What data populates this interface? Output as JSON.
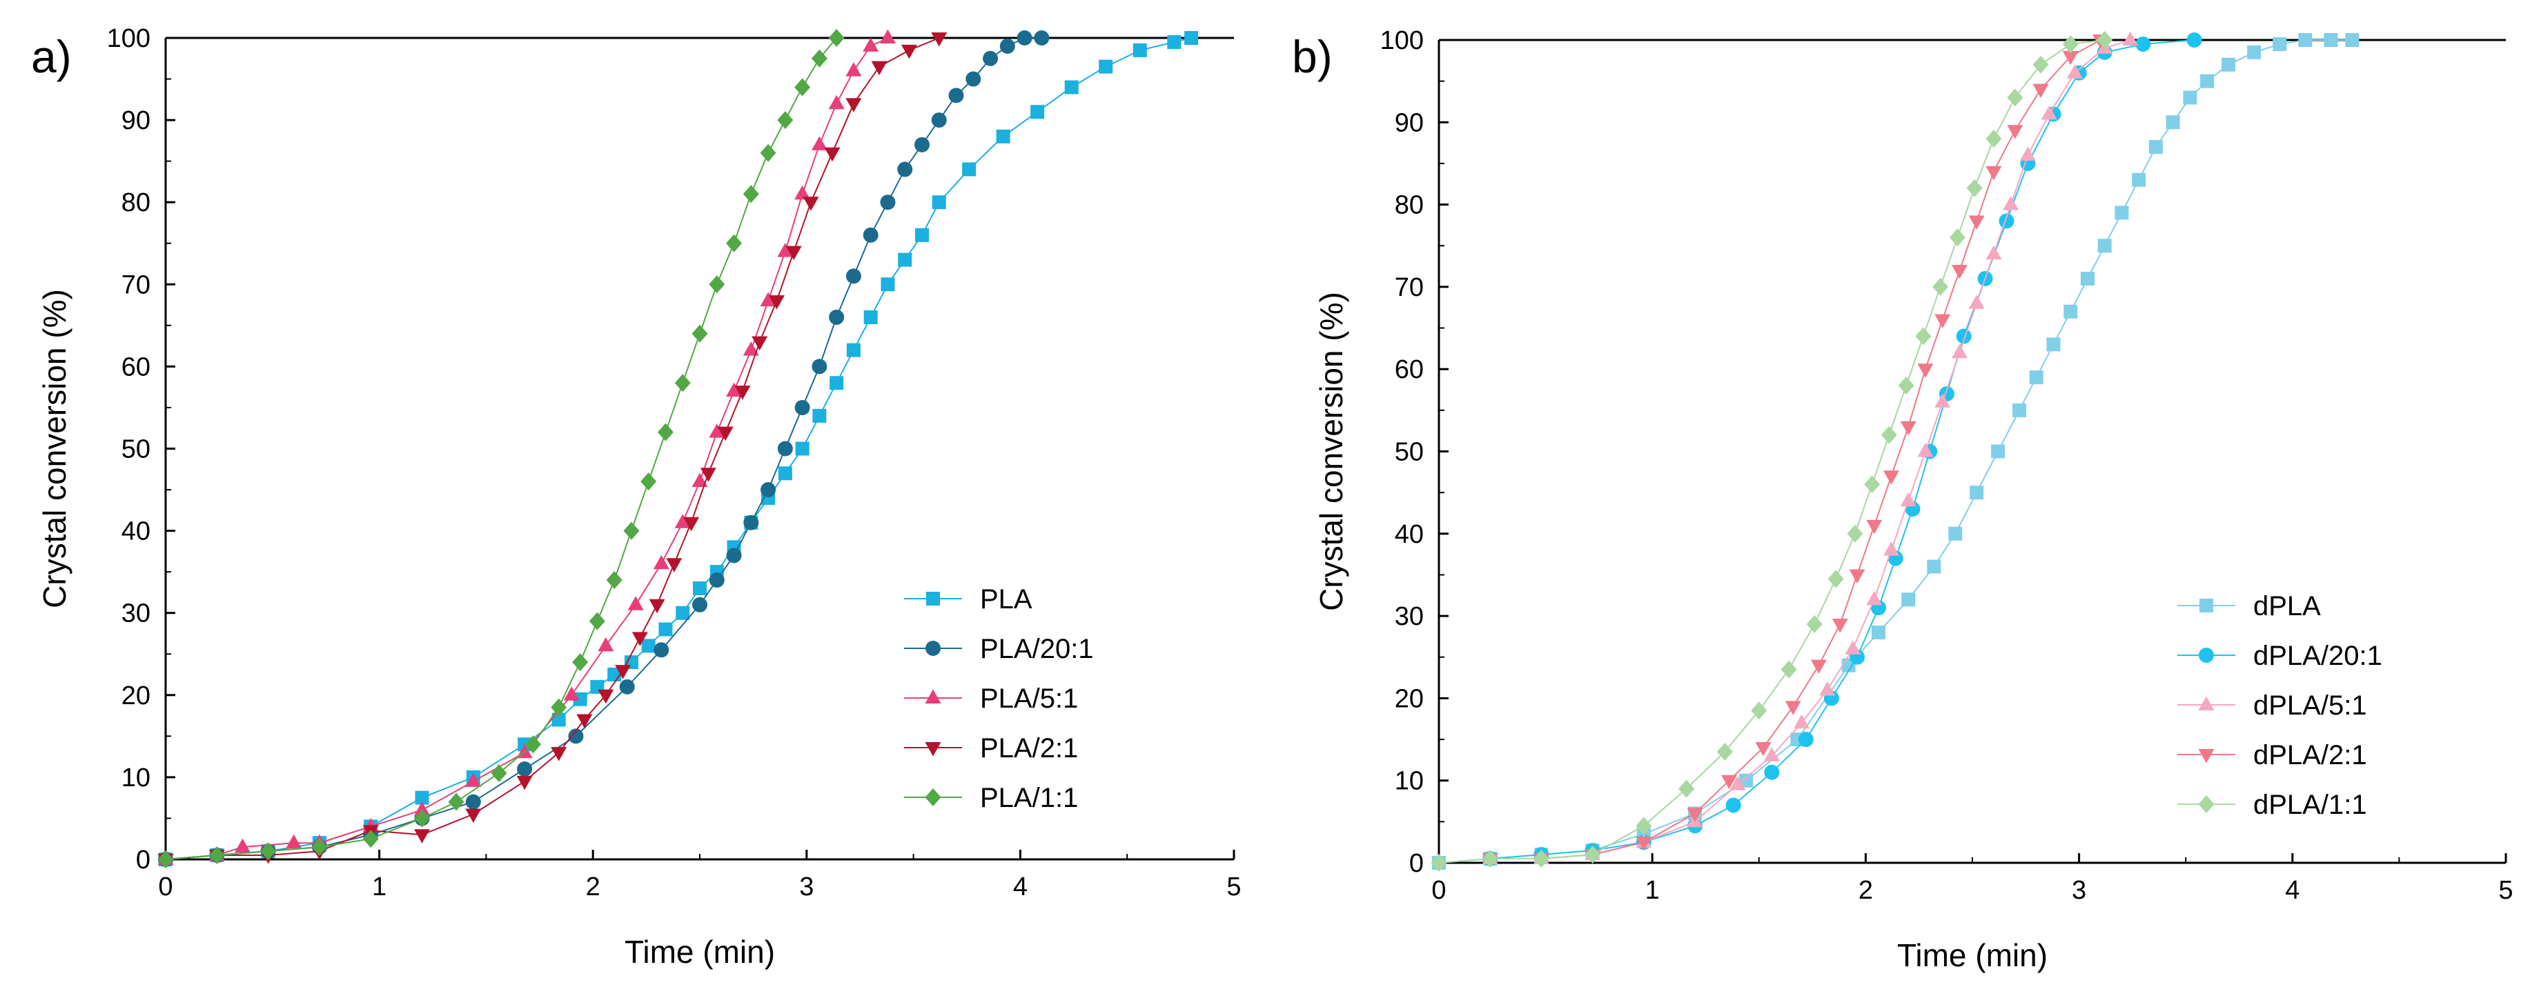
{
  "figure": {
    "panel_labels": [
      "a)",
      "b)"
    ]
  },
  "chart_data": [
    {
      "type": "line",
      "panel": "a)",
      "title": "",
      "xlabel": "Time (min)",
      "ylabel": "Crystal conversion (%)",
      "xlim": [
        0,
        5
      ],
      "ylim": [
        0,
        100
      ],
      "xticks": [
        "0",
        "1",
        "2",
        "3",
        "4",
        "5"
      ],
      "yticks": [
        "0",
        "10",
        "20",
        "30",
        "40",
        "50",
        "60",
        "70",
        "80",
        "90",
        "100"
      ],
      "legend_position": "lower-right",
      "series": [
        {
          "name": "PLA",
          "color": "#1ab0e0",
          "marker": "square",
          "x": [
            0,
            0.24,
            0.48,
            0.72,
            0.96,
            1.2,
            1.44,
            1.68,
            1.84,
            1.94,
            2.02,
            2.1,
            2.18,
            2.26,
            2.34,
            2.42,
            2.5,
            2.58,
            2.66,
            2.74,
            2.82,
            2.9,
            2.98,
            3.06,
            3.14,
            3.22,
            3.3,
            3.38,
            3.46,
            3.54,
            3.62,
            3.76,
            3.92,
            4.08,
            4.24,
            4.4,
            4.56,
            4.72,
            4.8
          ],
          "y": [
            0,
            0.5,
            1,
            2,
            4,
            7.5,
            10,
            14,
            17,
            19.5,
            21,
            22.5,
            24,
            26,
            28,
            30,
            33,
            35,
            38,
            41,
            44,
            47,
            50,
            54,
            58,
            62,
            66,
            70,
            73,
            76,
            80,
            84,
            88,
            91,
            94,
            96.5,
            98.5,
            99.5,
            100
          ]
        },
        {
          "name": "PLA/20:1",
          "color": "#1b6b8f",
          "marker": "circle",
          "x": [
            0,
            0.24,
            0.48,
            0.72,
            0.96,
            1.2,
            1.44,
            1.68,
            1.92,
            2.16,
            2.32,
            2.5,
            2.58,
            2.66,
            2.74,
            2.82,
            2.9,
            2.98,
            3.06,
            3.14,
            3.22,
            3.3,
            3.38,
            3.46,
            3.54,
            3.62,
            3.7,
            3.78,
            3.86,
            3.94,
            4.02,
            4.1
          ],
          "y": [
            0,
            0.5,
            1,
            1.5,
            3,
            5,
            7,
            11,
            15,
            21,
            25.5,
            31,
            34,
            37,
            41,
            45,
            50,
            55,
            60,
            66,
            71,
            76,
            80,
            84,
            87,
            90,
            93,
            95,
            97.5,
            99,
            100,
            100
          ]
        },
        {
          "name": "PLA/5:1",
          "color": "#e83e7a",
          "marker": "triangle-up",
          "x": [
            0,
            0.24,
            0.36,
            0.6,
            0.72,
            0.96,
            1.2,
            1.44,
            1.68,
            1.9,
            2.06,
            2.2,
            2.32,
            2.42,
            2.5,
            2.58,
            2.66,
            2.74,
            2.82,
            2.9,
            2.98,
            3.06,
            3.14,
            3.22,
            3.3,
            3.38
          ],
          "y": [
            0,
            0.5,
            1.5,
            2,
            2,
            4,
            6,
            9.5,
            13,
            20,
            26,
            31,
            36,
            41,
            46,
            52,
            57,
            62,
            68,
            74,
            81,
            87,
            92,
            96,
            99,
            100
          ]
        },
        {
          "name": "PLA/2:1",
          "color": "#b5122d",
          "marker": "triangle-down",
          "x": [
            0,
            0.24,
            0.48,
            0.72,
            0.96,
            1.2,
            1.44,
            1.68,
            1.84,
            1.96,
            2.06,
            2.14,
            2.22,
            2.3,
            2.38,
            2.46,
            2.54,
            2.62,
            2.7,
            2.78,
            2.86,
            2.94,
            3.02,
            3.12,
            3.22,
            3.34,
            3.48,
            3.62
          ],
          "y": [
            0,
            0.5,
            0.5,
            1,
            3.5,
            3,
            5.5,
            9.5,
            13,
            17,
            20,
            23,
            27,
            31,
            36,
            41,
            47,
            52,
            57,
            63,
            68,
            74,
            80,
            86,
            92,
            96.5,
            98.5,
            100
          ]
        },
        {
          "name": "PLA/1:1",
          "color": "#52a844",
          "marker": "diamond",
          "x": [
            0,
            0.24,
            0.48,
            0.72,
            0.96,
            1.2,
            1.36,
            1.56,
            1.72,
            1.84,
            1.94,
            2.02,
            2.1,
            2.18,
            2.26,
            2.34,
            2.42,
            2.5,
            2.58,
            2.66,
            2.74,
            2.82,
            2.9,
            2.98,
            3.06,
            3.14
          ],
          "y": [
            0,
            0.5,
            1,
            1.5,
            2.5,
            5,
            7,
            10.5,
            14,
            18.5,
            24,
            29,
            34,
            40,
            46,
            52,
            58,
            64,
            70,
            75,
            81,
            86,
            90,
            94,
            97.5,
            100
          ]
        }
      ]
    },
    {
      "type": "line",
      "panel": "b)",
      "title": "",
      "xlabel": "Time (min)",
      "ylabel": "Crystal conversion (%)",
      "xlim": [
        0,
        5
      ],
      "ylim": [
        0,
        100
      ],
      "xticks": [
        "0",
        "1",
        "2",
        "3",
        "4",
        "5"
      ],
      "yticks": [
        "0",
        "10",
        "20",
        "30",
        "40",
        "50",
        "60",
        "70",
        "80",
        "90",
        "100"
      ],
      "legend_position": "lower-right",
      "series": [
        {
          "name": "dPLA",
          "color": "#7fcfe8",
          "marker": "square",
          "x": [
            0,
            0.24,
            0.48,
            0.72,
            0.96,
            1.2,
            1.44,
            1.68,
            1.92,
            2.06,
            2.2,
            2.32,
            2.42,
            2.52,
            2.62,
            2.72,
            2.8,
            2.88,
            2.96,
            3.04,
            3.12,
            3.2,
            3.28,
            3.36,
            3.44,
            3.52,
            3.6,
            3.7,
            3.82,
            3.94,
            4.06,
            4.18,
            4.28
          ],
          "y": [
            0,
            0.5,
            1,
            1.5,
            3.5,
            6,
            10,
            15,
            24,
            28,
            32,
            36,
            40,
            45,
            50,
            55,
            59,
            63,
            67,
            71,
            75,
            79,
            83,
            87,
            90,
            93,
            95,
            97,
            98.5,
            99.5,
            100,
            100,
            100
          ]
        },
        {
          "name": "dPLA/20:1",
          "color": "#1ec2ee",
          "marker": "circle",
          "x": [
            0.24,
            0.48,
            0.72,
            0.96,
            1.2,
            1.38,
            1.56,
            1.72,
            1.84,
            1.96,
            2.06,
            2.14,
            2.22,
            2.3,
            2.38,
            2.46,
            2.56,
            2.66,
            2.76,
            2.88,
            3.0,
            3.12,
            3.3,
            3.54
          ],
          "y": [
            0.5,
            1,
            1.5,
            2.5,
            4.5,
            7,
            11,
            15,
            20,
            25,
            31,
            37,
            43,
            50,
            57,
            64,
            71,
            78,
            85,
            91,
            96,
            98.5,
            99.5,
            100
          ]
        },
        {
          "name": "dPLA/5:1",
          "color": "#f5a8c0",
          "marker": "triangle-up",
          "x": [
            0.24,
            0.48,
            0.72,
            0.96,
            1.2,
            1.4,
            1.56,
            1.7,
            1.82,
            1.94,
            2.04,
            2.12,
            2.2,
            2.28,
            2.36,
            2.44,
            2.52,
            2.6,
            2.68,
            2.76,
            2.86,
            2.98,
            3.12,
            3.24
          ],
          "y": [
            0.5,
            0.5,
            1,
            2.5,
            5,
            9.5,
            13,
            17,
            21,
            26,
            32,
            38,
            44,
            50,
            56,
            62,
            68,
            74,
            80,
            86,
            91,
            96,
            99,
            100
          ]
        },
        {
          "name": "dPLA/2:1",
          "color": "#f07888",
          "marker": "triangle-down",
          "x": [
            0.24,
            0.48,
            0.72,
            0.96,
            1.2,
            1.36,
            1.52,
            1.66,
            1.78,
            1.88,
            1.96,
            2.04,
            2.12,
            2.2,
            2.28,
            2.36,
            2.44,
            2.52,
            2.6,
            2.7,
            2.82,
            2.96,
            3.1
          ],
          "y": [
            0.5,
            0.5,
            1,
            2.5,
            6,
            10,
            14,
            19,
            24,
            29,
            35,
            41,
            47,
            53,
            60,
            66,
            72,
            78,
            84,
            89,
            94,
            98,
            100
          ]
        },
        {
          "name": "dPLA/1:1",
          "color": "#a8d8a0",
          "marker": "diamond",
          "x": [
            0,
            0.24,
            0.48,
            0.72,
            0.96,
            1.16,
            1.34,
            1.5,
            1.64,
            1.76,
            1.86,
            1.95,
            2.03,
            2.11,
            2.19,
            2.27,
            2.35,
            2.43,
            2.51,
            2.6,
            2.7,
            2.82,
            2.96,
            3.12
          ],
          "y": [
            0,
            0.5,
            0.5,
            1,
            4.5,
            9,
            13.5,
            18.5,
            23.5,
            29,
            34.5,
            40,
            46,
            52,
            58,
            64,
            70,
            76,
            82,
            88,
            93,
            97,
            99.5,
            100
          ]
        }
      ]
    }
  ]
}
